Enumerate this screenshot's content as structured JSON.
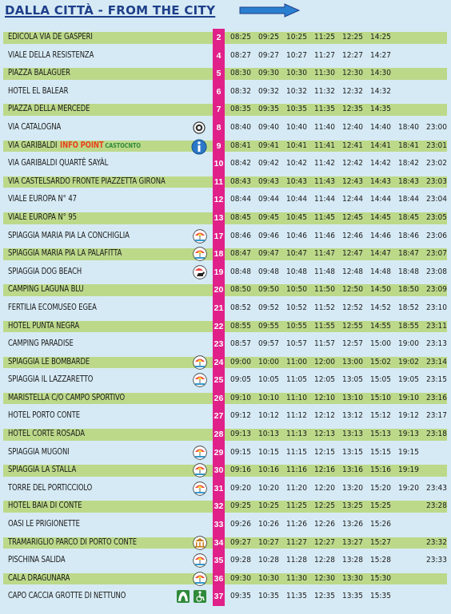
{
  "header": {
    "title": "DALLA CITTÀ - FROM THE CITY"
  },
  "colors": {
    "stop_bar": "#e0218a",
    "green_band": "#bcd98a",
    "title": "#1e3f8a",
    "arrow": "#2a7fd0"
  },
  "columns": [
    288,
    323,
    358,
    393,
    428,
    463,
    498,
    533
  ],
  "rows": [
    {
      "stop": "EDICOLA VIA DE GASPERI",
      "num": "2",
      "times": [
        "08:25",
        "09:25",
        "10:25",
        "11:25",
        "12:25",
        "14:25",
        "",
        ""
      ],
      "green": true,
      "icons": []
    },
    {
      "stop": "VIALE DELLA RESISTENZA",
      "num": "4",
      "times": [
        "08:27",
        "09:27",
        "10:27",
        "11:27",
        "12:27",
        "14:27",
        "",
        ""
      ],
      "green": false,
      "icons": []
    },
    {
      "stop": "PIAZZA BALAGUER",
      "num": "5",
      "times": [
        "08:30",
        "09:30",
        "10:30",
        "11:30",
        "12:30",
        "14:30",
        "",
        ""
      ],
      "green": true,
      "icons": []
    },
    {
      "stop": "HOTEL EL BALEAR",
      "num": "6",
      "times": [
        "08:32",
        "09:32",
        "10:32",
        "11:32",
        "12:32",
        "14:32",
        "",
        ""
      ],
      "green": false,
      "icons": []
    },
    {
      "stop": "PIAZZA DELLA MERCEDE",
      "num": "7",
      "times": [
        "08:35",
        "09:35",
        "10:35",
        "11:35",
        "12:35",
        "14:35",
        "",
        ""
      ],
      "green": true,
      "icons": []
    },
    {
      "stop": "VIA CATALOGNA",
      "num": "8",
      "times": [
        "08:40",
        "09:40",
        "10:40",
        "11:40",
        "12:40",
        "14:40",
        "18:40",
        "23:00"
      ],
      "green": false,
      "icons": [
        "target-icon"
      ]
    },
    {
      "stop": "VIA GARIBALDI",
      "num": "9",
      "times": [
        "08:41",
        "09:41",
        "10:41",
        "11:41",
        "12:41",
        "14:41",
        "18:41",
        "23:01"
      ],
      "green": true,
      "icons": [
        "info-icon"
      ],
      "extra": {
        "info": "INFO POINT",
        "brand": "CASTOCNTO"
      }
    },
    {
      "stop": "VIA GARIBALDI QUARTÈ SAYÀL",
      "num": "10",
      "times": [
        "08:42",
        "09:42",
        "10:42",
        "11:42",
        "12:42",
        "14:42",
        "18:42",
        "23:02"
      ],
      "green": false,
      "icons": []
    },
    {
      "stop": "VIA CASTELSARDO FRONTE PIAZZETTA GIRONA",
      "num": "11",
      "times": [
        "08:43",
        "09:43",
        "10:43",
        "11:43",
        "12:43",
        "14:43",
        "18:43",
        "23:03"
      ],
      "green": true,
      "icons": []
    },
    {
      "stop": "VIALE EUROPA  N° 47",
      "num": "12",
      "times": [
        "08:44",
        "09:44",
        "10:44",
        "11:44",
        "12:44",
        "14:44",
        "18:44",
        "23:04"
      ],
      "green": false,
      "icons": []
    },
    {
      "stop": "VIALE EUROPA   N° 95",
      "num": "13",
      "times": [
        "08:45",
        "09:45",
        "10:45",
        "11:45",
        "12:45",
        "14:45",
        "18:45",
        "23:05"
      ],
      "green": true,
      "icons": []
    },
    {
      "stop": "SPIAGGIA MARIA PIA LA CONCHIGLIA",
      "num": "17",
      "times": [
        "08:46",
        "09:46",
        "10:46",
        "11:46",
        "12:46",
        "14:46",
        "18:46",
        "23:06"
      ],
      "green": false,
      "icons": [
        "beach-icon"
      ]
    },
    {
      "stop": "SPIAGGIA MARIA PIA LA PALAFITTA",
      "num": "18",
      "times": [
        "08:47",
        "09:47",
        "10:47",
        "11:47",
        "12:47",
        "14:47",
        "18:47",
        "23:07"
      ],
      "green": true,
      "icons": [
        "beach-icon"
      ]
    },
    {
      "stop": "SPIAGGIA DOG BEACH",
      "num": "19",
      "times": [
        "08:48",
        "09:48",
        "10:48",
        "11:48",
        "12:48",
        "14:48",
        "18:48",
        "23:08"
      ],
      "green": false,
      "icons": [
        "dog-beach-icon"
      ]
    },
    {
      "stop": "CAMPING LAGUNA BLU",
      "num": "20",
      "times": [
        "08:50",
        "09:50",
        "10:50",
        "11:50",
        "12:50",
        "14:50",
        "18:50",
        "23:09"
      ],
      "green": true,
      "icons": []
    },
    {
      "stop": "FERTILIA ECOMUSEO EGEA",
      "num": "21",
      "times": [
        "08:52",
        "09:52",
        "10:52",
        "11:52",
        "12:52",
        "14:52",
        "18:52",
        "23:10"
      ],
      "green": false,
      "icons": []
    },
    {
      "stop": "HOTEL PUNTA NEGRA",
      "num": "22",
      "times": [
        "08:55",
        "09:55",
        "10:55",
        "11:55",
        "12:55",
        "14:55",
        "18:55",
        "23:11"
      ],
      "green": true,
      "icons": []
    },
    {
      "stop": "CAMPING PARADISE",
      "num": "23",
      "times": [
        "08:57",
        "09:57",
        "10:57",
        "11:57",
        "12:57",
        "15:00",
        "19:00",
        "23:13"
      ],
      "green": false,
      "icons": []
    },
    {
      "stop": "SPIAGGIA LE BOMBARDE",
      "num": "24",
      "times": [
        "09:00",
        "10:00",
        "11:00",
        "12:00",
        "13:00",
        "15:02",
        "19:02",
        "23:14"
      ],
      "green": true,
      "icons": [
        "beach-icon"
      ]
    },
    {
      "stop": "SPIAGGIA IL LAZZARETTO",
      "num": "25",
      "times": [
        "09:05",
        "10:05",
        "11:05",
        "12:05",
        "13:05",
        "15:05",
        "19:05",
        "23:15"
      ],
      "green": false,
      "icons": [
        "beach-icon"
      ]
    },
    {
      "stop": "MARISTELLA C/O CAMPO SPORTIVO",
      "num": "26",
      "times": [
        "09:10",
        "10:10",
        "11:10",
        "12:10",
        "13:10",
        "15:10",
        "19:10",
        "23:16"
      ],
      "green": true,
      "icons": []
    },
    {
      "stop": "HOTEL PORTO CONTE",
      "num": "27",
      "times": [
        "09:12",
        "10:12",
        "11:12",
        "12:12",
        "13:12",
        "15:12",
        "19:12",
        "23:17"
      ],
      "green": false,
      "icons": []
    },
    {
      "stop": "HOTEL CORTE ROSADA",
      "num": "28",
      "times": [
        "09:13",
        "10:13",
        "11:13",
        "12:13",
        "13:13",
        "15:13",
        "19:13",
        "23:18"
      ],
      "green": true,
      "icons": []
    },
    {
      "stop": "SPIAGGIA MUGONI",
      "num": "29",
      "times": [
        "09:15",
        "10:15",
        "11:15",
        "12:15",
        "13:15",
        "15:15",
        "19:15",
        ""
      ],
      "green": false,
      "icons": [
        "beach-icon"
      ]
    },
    {
      "stop": "SPIAGGIA LA STALLA",
      "num": "30",
      "times": [
        "09:16",
        "10:16",
        "11:16",
        "12:16",
        "13:16",
        "15:16",
        "19:19",
        ""
      ],
      "green": true,
      "icons": [
        "beach-icon"
      ]
    },
    {
      "stop": "TORRE DEL PORTICCIOLO",
      "num": "31",
      "times": [
        "09:20",
        "10:20",
        "11:20",
        "12:20",
        "13:20",
        "15:20",
        "19:20",
        "23:43"
      ],
      "green": false,
      "icons": [
        "beach-icon"
      ]
    },
    {
      "stop": "HOTEL BAIA DI CONTE",
      "num": "32",
      "times": [
        "09:25",
        "10:25",
        "11:25",
        "12:25",
        "13:25",
        "15:25",
        "",
        "23:28"
      ],
      "green": true,
      "icons": []
    },
    {
      "stop": "OASI LE PRIGIONETTE",
      "num": "33",
      "times": [
        "09:26",
        "10:26",
        "11:26",
        "12:26",
        "13:26",
        "15:26",
        "",
        ""
      ],
      "green": false,
      "icons": []
    },
    {
      "stop": "TRAMARIGLIO PARCO DI PORTO CONTE",
      "num": "34",
      "times": [
        "09:27",
        "10:27",
        "11:27",
        "12:27",
        "13:27",
        "15:27",
        "",
        "23:32"
      ],
      "green": true,
      "icons": [
        "museum-icon"
      ]
    },
    {
      "stop": "PISCHINA SALIDA",
      "num": "35",
      "times": [
        "09:28",
        "10:28",
        "11:28",
        "12:28",
        "13:28",
        "15:28",
        "",
        "23:33"
      ],
      "green": false,
      "icons": [
        "beach-icon"
      ]
    },
    {
      "stop": "CALA DRAGUNARA",
      "num": "36",
      "times": [
        "09:30",
        "10:30",
        "11:30",
        "12:30",
        "13:30",
        "15:30",
        "",
        ""
      ],
      "green": true,
      "icons": [
        "beach-icon"
      ]
    },
    {
      "stop": "CAPO CACCIA GROTTE DI NETTUNO",
      "num": "37",
      "times": [
        "09:35",
        "10:35",
        "11:35",
        "12:35",
        "13:35",
        "15:35",
        "",
        ""
      ],
      "green": false,
      "icons": [
        "cave-icon",
        "accessibility-icon"
      ]
    }
  ]
}
